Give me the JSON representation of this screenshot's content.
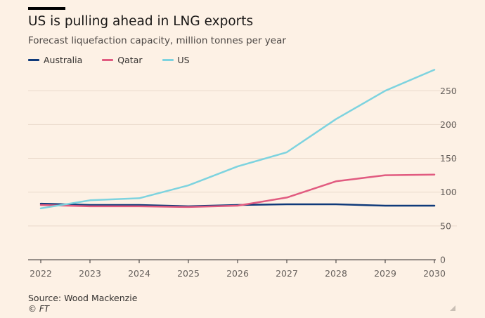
{
  "header": {
    "title": "US is pulling ahead in LNG exports",
    "subtitle": "Forecast liquefaction capacity, million tonnes per year"
  },
  "legend": [
    {
      "label": "Australia",
      "color": "#0f3a7a"
    },
    {
      "label": "Qatar",
      "color": "#e15b80"
    },
    {
      "label": "US",
      "color": "#7dd3df"
    }
  ],
  "footer": {
    "source": "Source: Wood Mackenzie",
    "copyright": "© FT"
  },
  "chart_data": {
    "type": "line",
    "title": "US is pulling ahead in LNG exports",
    "subtitle": "Forecast liquefaction capacity, million tonnes per year",
    "xlabel": "",
    "ylabel": "",
    "x": [
      2022,
      2023,
      2024,
      2025,
      2026,
      2027,
      2028,
      2029,
      2030
    ],
    "xticks": [
      "2022",
      "2023",
      "2024",
      "2025",
      "2026",
      "2027",
      "2028",
      "2029",
      "2030"
    ],
    "yticks": [
      0,
      50,
      100,
      150,
      200,
      250
    ],
    "ylim": [
      0,
      280
    ],
    "grid": true,
    "yaxis_side": "right",
    "series": [
      {
        "name": "Australia",
        "color": "#0f3a7a",
        "values": [
          83,
          81,
          81,
          79,
          81,
          82,
          82,
          80,
          80
        ]
      },
      {
        "name": "Qatar",
        "color": "#e15b80",
        "values": [
          81,
          79,
          79,
          78,
          80,
          92,
          116,
          125,
          126
        ]
      },
      {
        "name": "US",
        "color": "#7dd3df",
        "values": [
          76,
          88,
          91,
          110,
          138,
          159,
          208,
          250,
          281
        ]
      }
    ]
  }
}
